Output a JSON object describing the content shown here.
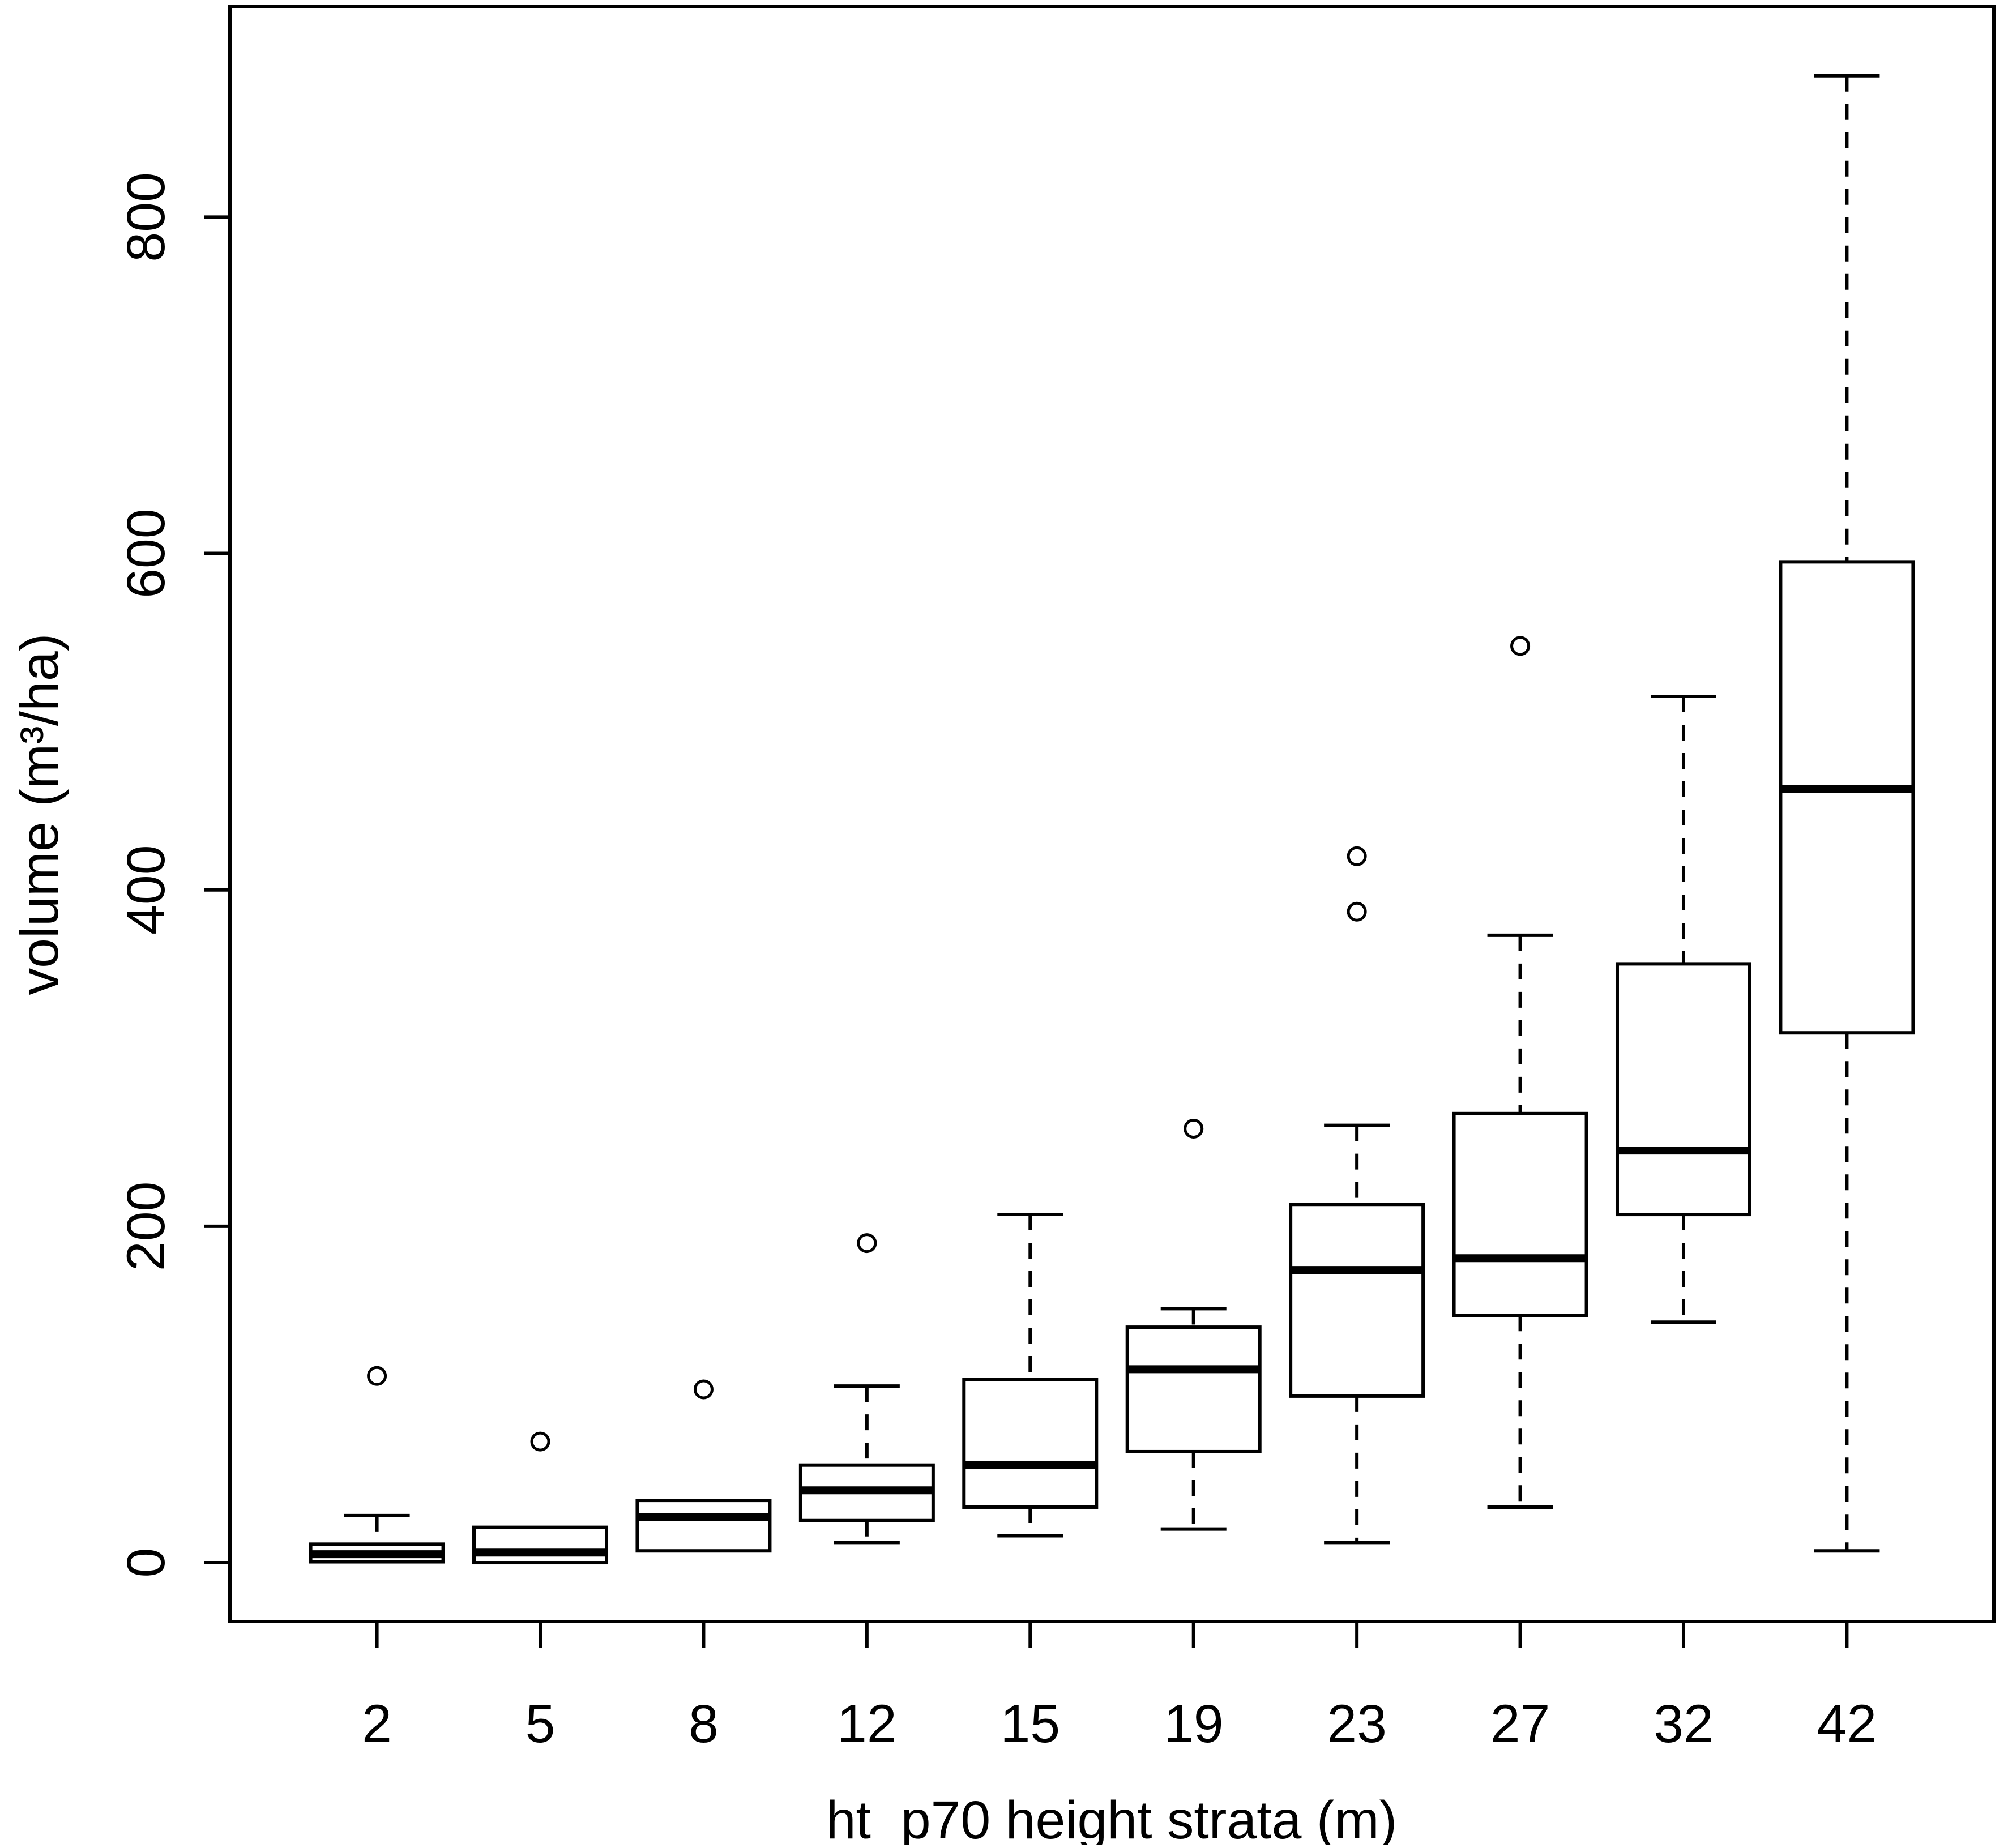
{
  "figure": {
    "background_color": "#ffffff",
    "stroke_color": "#000000"
  },
  "chart_data": {
    "type": "box",
    "title": "",
    "xlabel": "ht_p70 height strata (m)",
    "ylabel": "volume (m³/ha)",
    "categories": [
      "2",
      "5",
      "8",
      "12",
      "15",
      "19",
      "23",
      "27",
      "32",
      "42"
    ],
    "y_ticks": [
      0,
      200,
      400,
      600,
      800
    ],
    "ylim": [
      -35,
      925
    ],
    "grid": false,
    "legend": "none",
    "boxes": [
      {
        "category": "2",
        "whisker_low": 0,
        "q1": 0.5,
        "median": 5,
        "q3": 11,
        "whisker_high": 28,
        "outliers": [
          111
        ]
      },
      {
        "category": "5",
        "whisker_low": 0,
        "q1": 0,
        "median": 6,
        "q3": 21,
        "whisker_high": 21,
        "outliers": [
          72
        ]
      },
      {
        "category": "8",
        "whisker_low": 7,
        "q1": 7,
        "median": 27,
        "q3": 37,
        "whisker_high": 37,
        "outliers": [
          103
        ]
      },
      {
        "category": "12",
        "whisker_low": 12,
        "q1": 25,
        "median": 43,
        "q3": 58,
        "whisker_high": 105,
        "outliers": [
          190
        ]
      },
      {
        "category": "15",
        "whisker_low": 16,
        "q1": 33,
        "median": 58,
        "q3": 109,
        "whisker_high": 207,
        "outliers": []
      },
      {
        "category": "19",
        "whisker_low": 20,
        "q1": 66,
        "median": 115,
        "q3": 140,
        "whisker_high": 151,
        "outliers": [
          258
        ]
      },
      {
        "category": "23",
        "whisker_low": 12,
        "q1": 99,
        "median": 174,
        "q3": 213,
        "whisker_high": 260,
        "outliers": [
          387,
          420
        ]
      },
      {
        "category": "27",
        "whisker_low": 33,
        "q1": 147,
        "median": 181,
        "q3": 267,
        "whisker_high": 373,
        "outliers": [
          545
        ]
      },
      {
        "category": "32",
        "whisker_low": 143,
        "q1": 207,
        "median": 245,
        "q3": 356,
        "whisker_high": 515,
        "outliers": []
      },
      {
        "category": "42",
        "whisker_low": 7,
        "q1": 315,
        "median": 460,
        "q3": 595,
        "whisker_high": 884,
        "outliers": []
      }
    ]
  }
}
